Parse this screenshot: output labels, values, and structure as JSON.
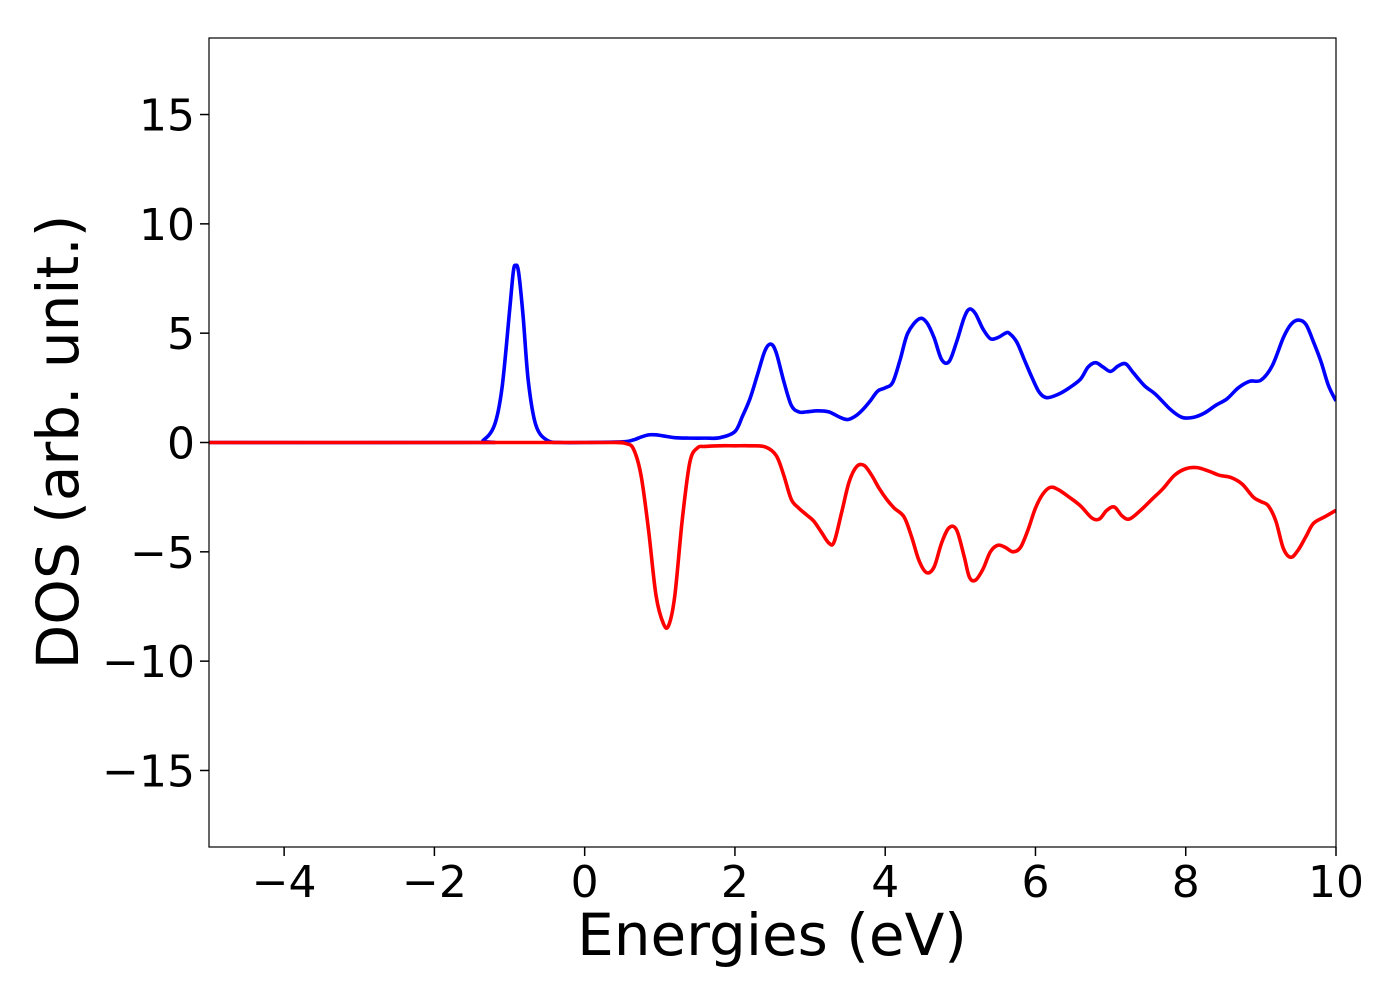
{
  "chart_data": {
    "type": "line",
    "title": "",
    "xlabel": "Energies (eV)",
    "ylabel": "DOS (arb. unit.)",
    "xlim": [
      -5,
      10
    ],
    "ylim": [
      -18.5,
      18.5
    ],
    "grid": false,
    "legend": "none",
    "x_ticks": [
      -4,
      -2,
      0,
      2,
      4,
      6,
      8,
      10
    ],
    "x_tick_labels": [
      "−4",
      "−2",
      "0",
      "2",
      "4",
      "6",
      "8",
      "10"
    ],
    "y_ticks": [
      15,
      10,
      5,
      0,
      -5,
      -10,
      -15
    ],
    "y_tick_labels": [
      "15",
      "10",
      "5",
      "0",
      "−5",
      "−10",
      "−15"
    ],
    "series": [
      {
        "color": "#0000ff",
        "x": [
          -5,
          -1.5,
          -1.35,
          -1.2,
          -1.1,
          -1.0,
          -0.95,
          -0.92,
          -0.88,
          -0.82,
          -0.75,
          -0.65,
          -0.5,
          -0.3,
          0,
          0.5,
          0.65,
          0.75,
          0.85,
          0.95,
          1.05,
          1.2,
          1.4,
          1.6,
          1.8,
          2.0,
          2.1,
          2.2,
          2.3,
          2.4,
          2.48,
          2.55,
          2.65,
          2.75,
          2.85,
          2.95,
          3.1,
          3.25,
          3.4,
          3.5,
          3.6,
          3.7,
          3.8,
          3.9,
          4.0,
          4.1,
          4.2,
          4.3,
          4.45,
          4.55,
          4.65,
          4.75,
          4.85,
          4.95,
          5.05,
          5.12,
          5.2,
          5.3,
          5.4,
          5.5,
          5.6,
          5.65,
          5.75,
          5.85,
          5.95,
          6.05,
          6.15,
          6.3,
          6.45,
          6.6,
          6.7,
          6.8,
          6.9,
          7.0,
          7.1,
          7.2,
          7.3,
          7.45,
          7.6,
          7.8,
          7.95,
          8.1,
          8.25,
          8.4,
          8.55,
          8.7,
          8.85,
          9.0,
          9.15,
          9.3,
          9.4,
          9.5,
          9.6,
          9.7,
          9.8,
          9.9,
          10.0
        ],
        "y": [
          0,
          0,
          0.1,
          0.8,
          2.5,
          6.0,
          7.8,
          8.1,
          7.8,
          5.8,
          2.8,
          0.8,
          0.1,
          0,
          0,
          0.03,
          0.12,
          0.25,
          0.35,
          0.35,
          0.3,
          0.22,
          0.2,
          0.2,
          0.22,
          0.5,
          1.2,
          2.0,
          3.1,
          4.2,
          4.5,
          4.1,
          2.8,
          1.7,
          1.4,
          1.4,
          1.45,
          1.4,
          1.15,
          1.05,
          1.2,
          1.5,
          1.9,
          2.35,
          2.5,
          2.75,
          3.8,
          5.0,
          5.65,
          5.5,
          4.8,
          3.8,
          3.7,
          4.6,
          5.7,
          6.1,
          5.9,
          5.2,
          4.75,
          4.8,
          5.0,
          5.0,
          4.6,
          3.8,
          3.0,
          2.3,
          2.05,
          2.2,
          2.5,
          2.9,
          3.45,
          3.65,
          3.45,
          3.25,
          3.5,
          3.6,
          3.2,
          2.6,
          2.2,
          1.5,
          1.15,
          1.15,
          1.35,
          1.7,
          2.0,
          2.5,
          2.8,
          2.85,
          3.5,
          4.8,
          5.4,
          5.6,
          5.4,
          4.6,
          3.7,
          2.6,
          1.9
        ]
      },
      {
        "color": "#ff0000",
        "x": [
          -5,
          0,
          0.4,
          0.55,
          0.65,
          0.75,
          0.85,
          0.95,
          1.05,
          1.12,
          1.2,
          1.3,
          1.4,
          1.5,
          1.6,
          1.8,
          2.0,
          2.2,
          2.4,
          2.55,
          2.65,
          2.75,
          2.85,
          2.95,
          3.05,
          3.15,
          3.25,
          3.32,
          3.42,
          3.52,
          3.62,
          3.72,
          3.82,
          3.92,
          4.02,
          4.12,
          4.25,
          4.35,
          4.45,
          4.55,
          4.65,
          4.75,
          4.85,
          4.95,
          5.05,
          5.12,
          5.2,
          5.3,
          5.4,
          5.5,
          5.6,
          5.7,
          5.8,
          5.9,
          6.0,
          6.1,
          6.2,
          6.3,
          6.45,
          6.6,
          6.75,
          6.85,
          6.95,
          7.05,
          7.15,
          7.25,
          7.4,
          7.55,
          7.7,
          7.85,
          8.0,
          8.15,
          8.3,
          8.45,
          8.6,
          8.75,
          8.9,
          9.0,
          9.1,
          9.2,
          9.3,
          9.4,
          9.5,
          9.6,
          9.7,
          9.85,
          10.0
        ],
        "y": [
          0,
          0,
          0,
          -0.05,
          -0.3,
          -1.5,
          -4.0,
          -7.0,
          -8.3,
          -8.35,
          -7.0,
          -3.5,
          -0.9,
          -0.25,
          -0.18,
          -0.15,
          -0.15,
          -0.15,
          -0.2,
          -0.6,
          -1.5,
          -2.6,
          -3.0,
          -3.3,
          -3.6,
          -4.1,
          -4.6,
          -4.55,
          -3.2,
          -1.8,
          -1.1,
          -1.05,
          -1.5,
          -2.1,
          -2.6,
          -3.0,
          -3.4,
          -4.3,
          -5.4,
          -5.95,
          -5.7,
          -4.6,
          -3.9,
          -4.0,
          -5.2,
          -6.15,
          -6.3,
          -5.8,
          -5.0,
          -4.7,
          -4.8,
          -5.0,
          -4.8,
          -4.0,
          -3.0,
          -2.35,
          -2.05,
          -2.15,
          -2.5,
          -2.9,
          -3.45,
          -3.5,
          -3.1,
          -2.95,
          -3.35,
          -3.5,
          -3.1,
          -2.6,
          -2.1,
          -1.5,
          -1.2,
          -1.15,
          -1.3,
          -1.5,
          -1.6,
          -1.9,
          -2.5,
          -2.7,
          -2.9,
          -3.6,
          -4.85,
          -5.25,
          -4.9,
          -4.3,
          -3.7,
          -3.4,
          -3.1
        ]
      }
    ]
  }
}
